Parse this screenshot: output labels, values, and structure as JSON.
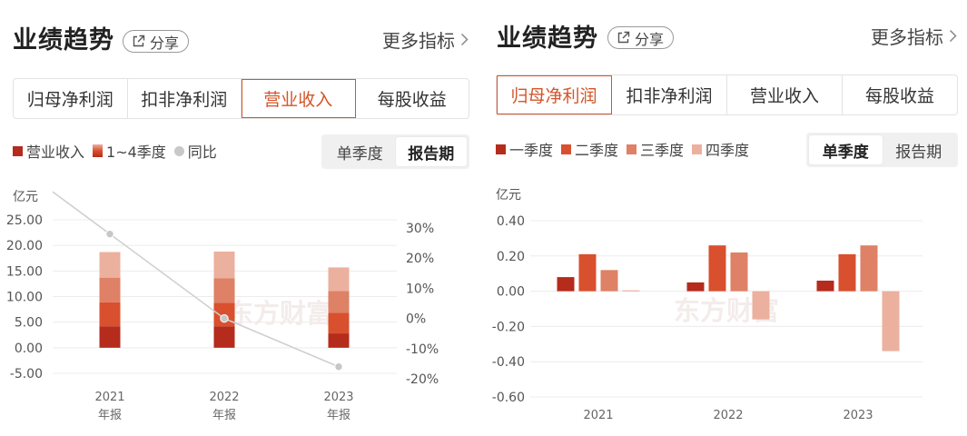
{
  "left": {
    "title": "业绩趋势",
    "share_label": "分享",
    "more_label": "更多指标",
    "tabs": [
      "归母净利润",
      "扣非净利润",
      "营业收入",
      "每股收益"
    ],
    "active_tab": 2,
    "legend": [
      "营业收入",
      "1~4季度",
      "同比"
    ],
    "toggle": [
      "单季度",
      "报告期"
    ],
    "active_toggle": 1,
    "unit_label": "亿元"
  },
  "right": {
    "title": "业绩趋势",
    "share_label": "分享",
    "more_label": "更多指标",
    "tabs": [
      "归母净利润",
      "扣非净利润",
      "营业收入",
      "每股收益"
    ],
    "active_tab": 0,
    "legend": [
      "一季度",
      "二季度",
      "三季度",
      "四季度"
    ],
    "toggle": [
      "单季度",
      "报告期"
    ],
    "active_toggle": 0,
    "unit_label": "亿元"
  },
  "watermark": "东方财富",
  "colors": {
    "accent": "#d4552a",
    "q1": "#b52b1c",
    "q2": "#d9502e",
    "q3": "#de8166",
    "q4": "#ecb09f",
    "yoy_line": "#cfcfcf",
    "grid": "#ececec"
  },
  "chart_data": [
    {
      "type": "bar",
      "stacked": true,
      "categories": [
        "2021\n年报",
        "2022\n年报",
        "2023\n年报"
      ],
      "series": [
        {
          "name": "1~4季度",
          "stack_values": [
            [
              4.2,
              4.7,
              4.8,
              5.0
            ],
            [
              4.2,
              4.6,
              4.8,
              5.2
            ],
            [
              2.8,
              4.0,
              4.3,
              4.6
            ]
          ]
        }
      ],
      "totals": [
        18.7,
        18.8,
        15.7
      ],
      "line": {
        "name": "同比",
        "values": [
          28,
          0,
          -16
        ]
      },
      "left_ticks": [
        "25.00",
        "20.00",
        "15.00",
        "10.00",
        "5.00",
        "0.00",
        "-5.00"
      ],
      "right_ticks": [
        "30%",
        "20%",
        "10%",
        "0%",
        "-10%",
        "-20%"
      ],
      "ylim": [
        -5,
        25
      ],
      "y2lim": [
        -20,
        30
      ],
      "ylabel": "亿元"
    },
    {
      "type": "bar",
      "categories": [
        "2021",
        "2022",
        "2023"
      ],
      "series": [
        {
          "name": "一季度",
          "values": [
            0.08,
            0.05,
            0.06
          ]
        },
        {
          "name": "二季度",
          "values": [
            0.21,
            0.26,
            0.21
          ]
        },
        {
          "name": "三季度",
          "values": [
            0.12,
            0.22,
            0.26
          ]
        },
        {
          "name": "四季度",
          "values": [
            0.005,
            -0.16,
            -0.34
          ]
        }
      ],
      "ticks": [
        "0.40",
        "0.20",
        "0.00",
        "-0.20",
        "-0.40",
        "-0.60"
      ],
      "ylim": [
        -0.6,
        0.4
      ],
      "ylabel": "亿元"
    }
  ]
}
